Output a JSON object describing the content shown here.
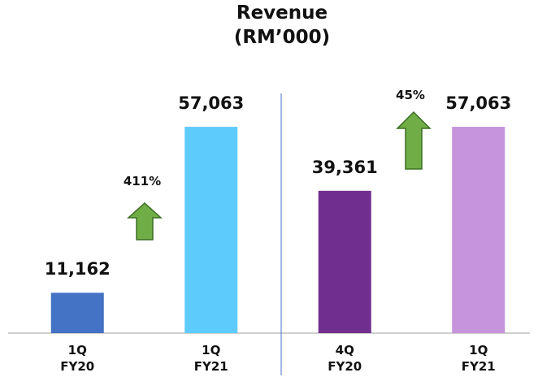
{
  "chart_data": {
    "type": "bar",
    "title": "Revenue\n(RM’000)",
    "categories": [
      "1Q\nFY20",
      "1Q\nFY21",
      "4Q\nFY20",
      "1Q\nFY21"
    ],
    "values": [
      11162,
      57063,
      39361,
      57063
    ],
    "value_labels": [
      "11,162",
      "57,063",
      "39,361",
      "57,063"
    ],
    "colors": [
      "#4472c4",
      "#5ecbfd",
      "#702f8f",
      "#c693dd"
    ],
    "ylim": [
      0,
      60000
    ],
    "annotations": [
      "411%",
      "45%"
    ]
  }
}
